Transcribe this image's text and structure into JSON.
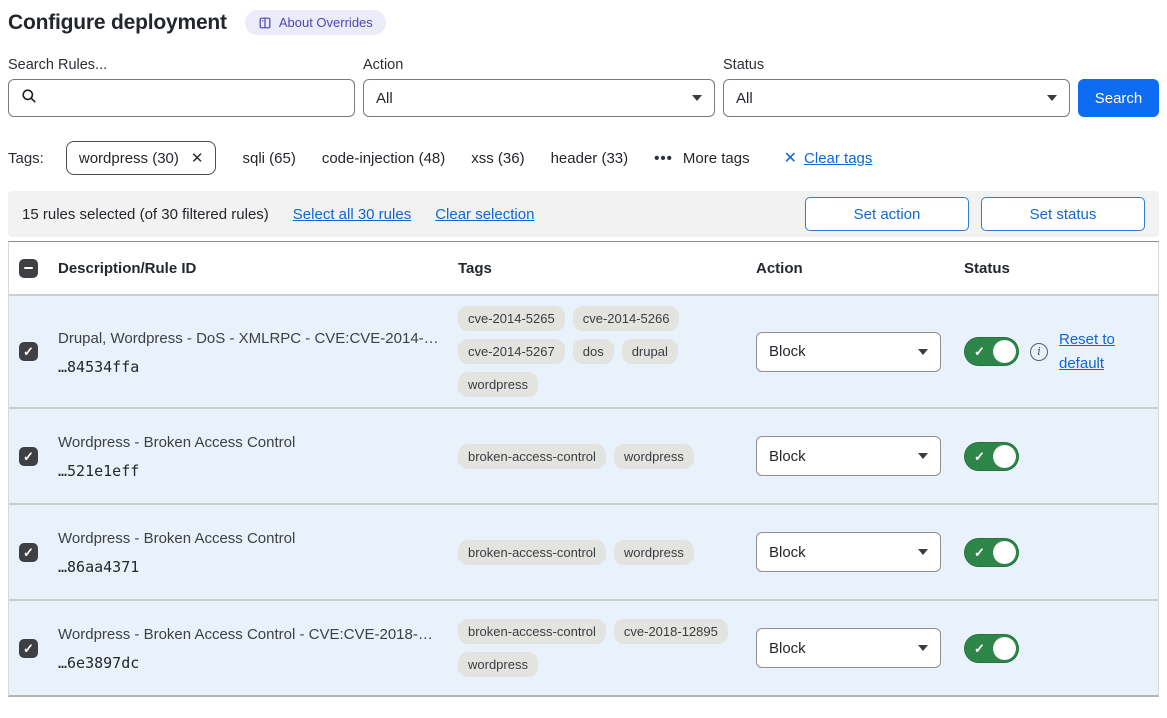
{
  "header": {
    "title": "Configure deployment",
    "about_badge": "About Overrides"
  },
  "filters": {
    "search_label": "Search Rules...",
    "search_value": "",
    "action_label": "Action",
    "action_value": "All",
    "status_label": "Status",
    "status_value": "All",
    "search_button": "Search"
  },
  "tags_bar": {
    "label": "Tags:",
    "selected_tag": "wordpress (30)",
    "others": [
      "sqli (65)",
      "code-injection (48)",
      "xss (36)",
      "header (33)"
    ],
    "more_tags": "More tags",
    "clear_tags": "Clear tags"
  },
  "selection_bar": {
    "summary": "15 rules selected (of 30 filtered rules)",
    "select_all": "Select all 30 rules",
    "clear_selection": "Clear selection",
    "set_action": "Set action",
    "set_status": "Set status"
  },
  "table": {
    "headers": {
      "description": "Description/Rule ID",
      "tags": "Tags",
      "action": "Action",
      "status": "Status"
    },
    "rows": [
      {
        "description": "Drupal, Wordpress - DoS - XMLRPC - CVE:CVE-2014-…",
        "rule_id": "…84534ffa",
        "tags": [
          "cve-2014-5265",
          "cve-2014-5266",
          "cve-2014-5267",
          "dos",
          "drupal",
          "wordpress"
        ],
        "action": "Block",
        "enabled": true,
        "reset_link": "Reset to default"
      },
      {
        "description": "Wordpress - Broken Access Control",
        "rule_id": "…521e1eff",
        "tags": [
          "broken-access-control",
          "wordpress"
        ],
        "action": "Block",
        "enabled": true
      },
      {
        "description": "Wordpress - Broken Access Control",
        "rule_id": "…86aa4371",
        "tags": [
          "broken-access-control",
          "wordpress"
        ],
        "action": "Block",
        "enabled": true
      },
      {
        "description": "Wordpress - Broken Access Control - CVE:CVE-2018-…",
        "rule_id": "…6e3897dc",
        "tags": [
          "broken-access-control",
          "cve-2018-12895",
          "wordpress"
        ],
        "action": "Block",
        "enabled": true
      }
    ]
  },
  "colors": {
    "accent_blue": "#0d6cf2",
    "link_blue": "#0e67d2",
    "toggle_green": "#2e8548",
    "row_selected_bg": "#e9f1fb",
    "badge_bg": "#ecebfa",
    "badge_text": "#4e46b4",
    "pill_bg": "#e3e3e0",
    "checkbox_dark": "#3f4043"
  }
}
